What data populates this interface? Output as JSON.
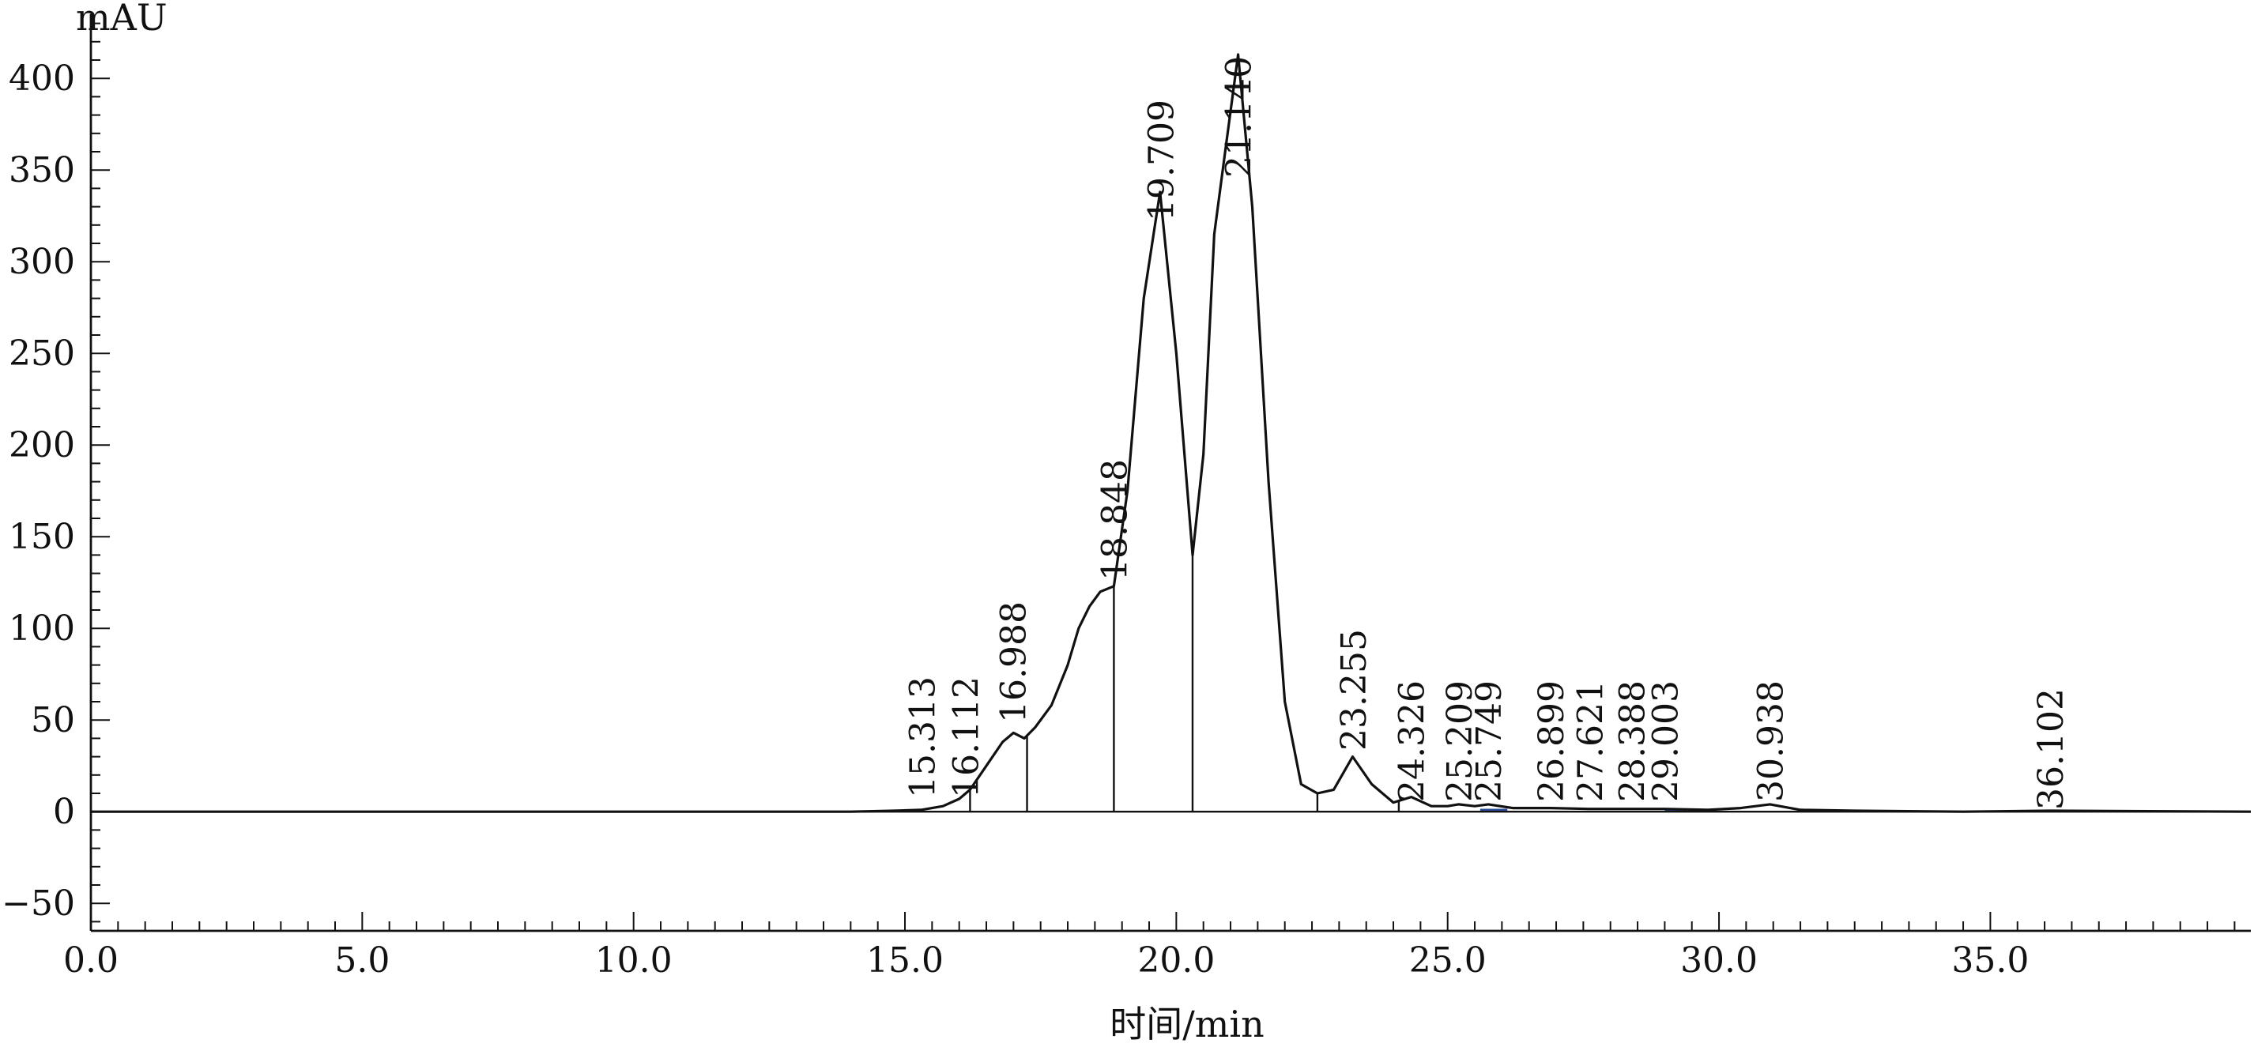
{
  "chart_data": {
    "type": "line",
    "ylabel": "mAU",
    "xlabel": "时间/min",
    "xlim": [
      0,
      39.8
    ],
    "ylim": [
      -65,
      435
    ],
    "xticks": [
      "0.0",
      "5.0",
      "10.0",
      "15.0",
      "20.0",
      "25.0",
      "30.0",
      "35.0"
    ],
    "yticks": [
      "−50",
      "0",
      "50",
      "100",
      "150",
      "200",
      "250",
      "300",
      "350",
      "400"
    ],
    "grid": false,
    "series": [
      {
        "x": [
          0,
          14.0,
          14.8,
          15.3,
          15.7,
          16.0,
          16.2,
          16.5,
          16.8,
          17.0,
          17.2,
          17.4,
          17.7,
          18.0,
          18.2,
          18.4,
          18.6,
          18.85,
          19.1,
          19.4,
          19.7,
          20.0,
          20.3,
          20.5,
          20.7,
          20.9,
          21.14,
          21.4,
          21.7,
          22.0,
          22.3,
          22.6,
          22.9,
          23.25,
          23.6,
          24.0,
          24.33,
          24.7,
          25.0,
          25.2,
          25.5,
          25.75,
          26.2,
          26.9,
          27.6,
          28.4,
          29.0,
          29.8,
          30.4,
          30.94,
          31.5,
          32.5,
          34.5,
          36.1,
          39.8
        ],
        "y": [
          0,
          0,
          0.5,
          1,
          3,
          7,
          12,
          25,
          38,
          43,
          40,
          46,
          58,
          80,
          100,
          112,
          120,
          123,
          175,
          280,
          338,
          250,
          140,
          195,
          315,
          360,
          413,
          330,
          180,
          60,
          15,
          10,
          12,
          30,
          15,
          5,
          8,
          3,
          3,
          4,
          3,
          4,
          2,
          2,
          1.5,
          1.5,
          1.5,
          1,
          2,
          4,
          1,
          0.5,
          0,
          0.5,
          0
        ]
      }
    ],
    "annotations": [
      "15.313",
      "16.112",
      "16.988",
      "18.848",
      "19.709",
      "21.140",
      "23.255",
      "24.326",
      "25.209",
      "25.749",
      "26.899",
      "27.621",
      "28.388",
      "29.003",
      "30.938",
      "36.102"
    ],
    "annotation_x": [
      15.313,
      16.112,
      16.988,
      18.848,
      19.709,
      21.14,
      23.255,
      24.326,
      25.209,
      25.749,
      26.899,
      27.621,
      28.388,
      29.003,
      30.938,
      36.102
    ],
    "peak_boundaries_x": [
      16.2,
      17.25,
      18.85,
      20.3,
      22.6,
      24.1
    ],
    "colors": {
      "trace": "#111111",
      "axis": "#111111",
      "accent": "#2a4a9a"
    }
  }
}
